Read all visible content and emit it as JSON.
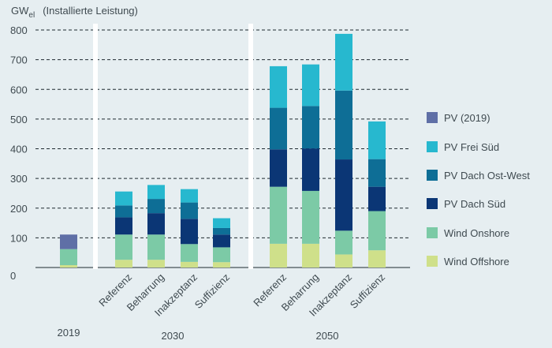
{
  "chart_data": {
    "type": "bar",
    "stacked": true,
    "ylabel": {
      "main": "GW",
      "subscript": "el",
      "note": "(Installierte Leistung)"
    },
    "ylim": [
      0,
      800
    ],
    "yticks": [
      0,
      100,
      200,
      300,
      400,
      500,
      600,
      700,
      800
    ],
    "grid": "dashed-horizontal",
    "legend_position": "right",
    "groups": [
      {
        "label": "2019",
        "categories": [
          ""
        ]
      },
      {
        "label": "2030",
        "categories": [
          "Referenz",
          "Beharrung",
          "Inakzeptanz",
          "Suffizienz"
        ]
      },
      {
        "label": "2050",
        "categories": [
          "Referenz",
          "Beharrung",
          "Inakzeptanz",
          "Suffizienz"
        ]
      }
    ],
    "series": [
      {
        "name": "Wind Offshore",
        "color": "#cfe08a",
        "values": [
          8,
          26,
          26,
          19,
          18,
          80,
          80,
          44,
          58
        ]
      },
      {
        "name": "Wind Onshore",
        "color": "#7ccaa6",
        "values": [
          54,
          85,
          85,
          60,
          50,
          192,
          178,
          80,
          132
        ]
      },
      {
        "name": "PV Dach Süd",
        "color": "#0b3675",
        "values": [
          0,
          58,
          72,
          85,
          43,
          126,
          143,
          240,
          82
        ]
      },
      {
        "name": "PV Dach Ost-West",
        "color": "#0e6e96",
        "values": [
          0,
          40,
          48,
          55,
          22,
          140,
          143,
          232,
          93
        ]
      },
      {
        "name": "PV Frei Süd",
        "color": "#27b8cf",
        "values": [
          0,
          47,
          47,
          45,
          33,
          140,
          140,
          191,
          127
        ]
      },
      {
        "name": "PV (2019)",
        "color": "#5f6fa6",
        "values": [
          49,
          0,
          0,
          0,
          0,
          0,
          0,
          0,
          0
        ]
      }
    ],
    "legend_order": [
      "PV (2019)",
      "PV Frei Süd",
      "PV Dach Ost-West",
      "PV Dach Süd",
      "Wind Onshore",
      "Wind Offshore"
    ]
  }
}
